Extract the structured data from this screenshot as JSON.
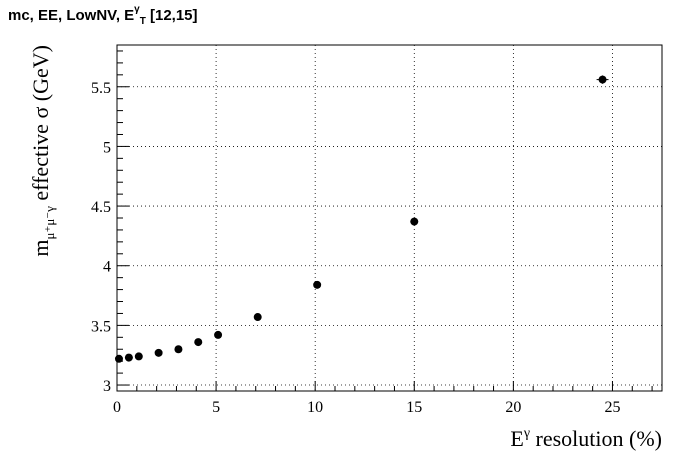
{
  "chart_data": {
    "type": "scatter",
    "title": {
      "prefix": "mc, EE, LowNV, E",
      "sup": "γ",
      "sub": "T",
      "suffix": " [12,15]"
    },
    "xlabel": {
      "base": "E",
      "sup": "γ",
      "rest": " resolution (%)"
    },
    "ylabel": {
      "base": "m",
      "sub": "μ⁺μ⁻γ",
      "rest": " effective σ (GeV)"
    },
    "xlim": [
      0,
      27.5
    ],
    "ylim": [
      2.95,
      5.85
    ],
    "xticks": [
      0,
      5,
      10,
      15,
      20,
      25
    ],
    "yticks": [
      3,
      3.5,
      4,
      4.5,
      5,
      5.5
    ],
    "grid": true,
    "series": [
      {
        "x": [
          0.1,
          0.6,
          1.1,
          2.1,
          3.1,
          4.1,
          5.1,
          7.1,
          10.1,
          15.0,
          24.5
        ],
        "y": [
          3.22,
          3.23,
          3.24,
          3.27,
          3.3,
          3.36,
          3.42,
          3.57,
          3.84,
          4.37,
          5.56
        ],
        "yerr": [
          0.012,
          0.012,
          0.012,
          0.012,
          0.012,
          0.015,
          0.015,
          0.018,
          0.022,
          0.028,
          0.035
        ],
        "xerr": [
          0,
          0,
          0,
          0,
          0,
          0,
          0,
          0,
          0,
          0,
          0.3
        ]
      }
    ]
  }
}
